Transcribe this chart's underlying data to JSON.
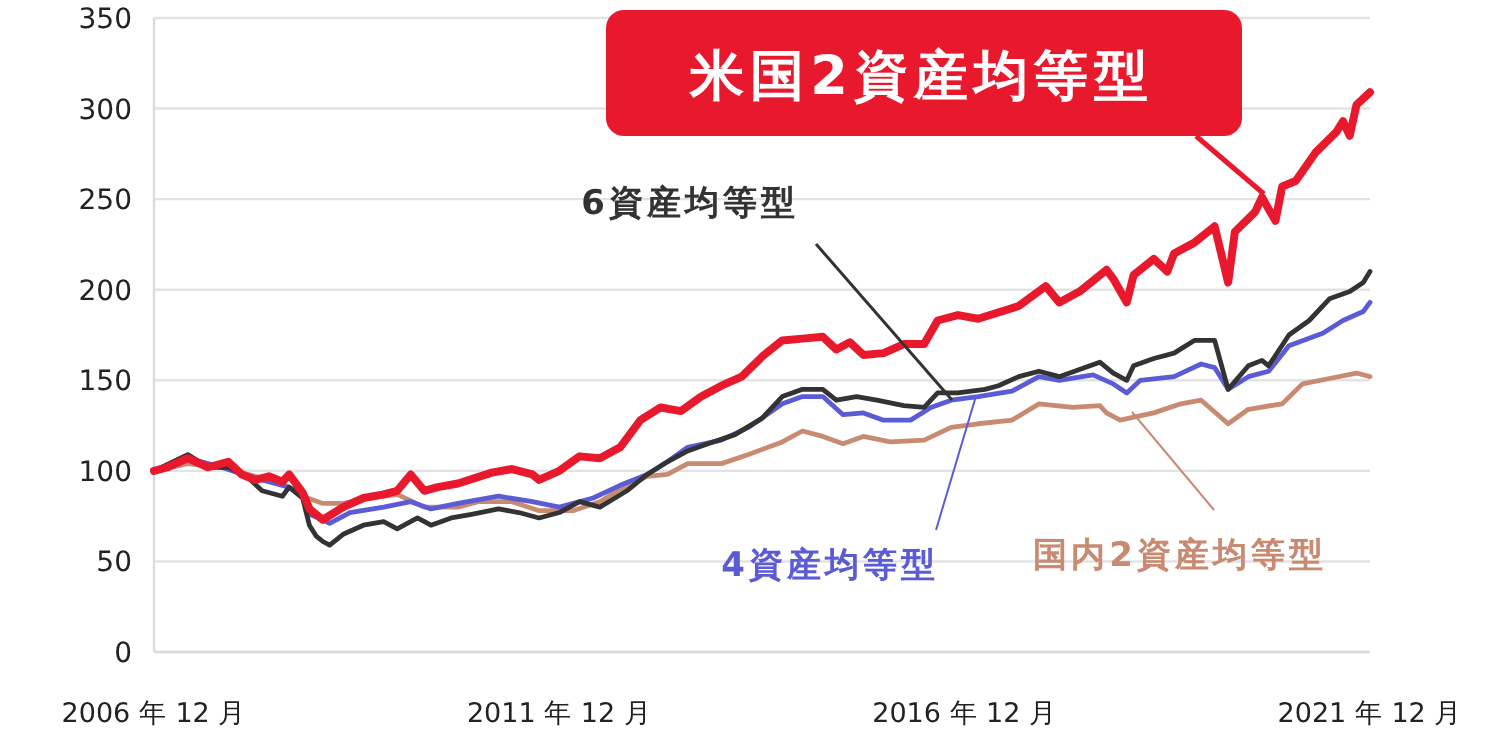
{
  "chart_data": {
    "type": "line",
    "xlim": [
      "2006-12",
      "2021-12"
    ],
    "ylim": [
      0,
      350
    ],
    "yticks": [
      0,
      50,
      100,
      150,
      200,
      250,
      300,
      350
    ],
    "xticks": [
      {
        "value": "2006-12",
        "label": "2006 年 12 月"
      },
      {
        "value": "2011-12",
        "label": "2011 年 12 月"
      },
      {
        "value": "2016-12",
        "label": "2016 年 12 月"
      },
      {
        "value": "2021-12",
        "label": "2021 年 12 月"
      }
    ],
    "grid": "y",
    "legend": false,
    "marker": "none",
    "line_style": "solid",
    "series": [
      {
        "name": "米国2資産均等型",
        "color": "#e8192c",
        "x": [
          "2006-12",
          "2007-02",
          "2007-05",
          "2007-08",
          "2007-11",
          "2008-01",
          "2008-03",
          "2008-05",
          "2008-07",
          "2008-08",
          "2008-10",
          "2008-11",
          "2008-12",
          "2009-01",
          "2009-04",
          "2009-07",
          "2009-10",
          "2009-12",
          "2010-02",
          "2010-04",
          "2010-06",
          "2010-09",
          "2011-02",
          "2011-05",
          "2011-08",
          "2011-09",
          "2011-12",
          "2012-03",
          "2012-06",
          "2012-09",
          "2012-12",
          "2013-03",
          "2013-06",
          "2013-09",
          "2013-12",
          "2014-03",
          "2014-06",
          "2014-09",
          "2014-12",
          "2015-03",
          "2015-05",
          "2015-07",
          "2015-09",
          "2015-12",
          "2016-03",
          "2016-06",
          "2016-08",
          "2016-11",
          "2017-02",
          "2017-08",
          "2017-12",
          "2018-02",
          "2018-05",
          "2018-09",
          "2018-10",
          "2018-12",
          "2019-01",
          "2019-04",
          "2019-06",
          "2019-07",
          "2019-10",
          "2020-01",
          "2020-03",
          "2020-04",
          "2020-07",
          "2020-08",
          "2020-10",
          "2020-11",
          "2021-01",
          "2021-04",
          "2021-07",
          "2021-08",
          "2021-09",
          "2021-10",
          "2021-12"
        ],
        "values": [
          100,
          102,
          107,
          102,
          105,
          98,
          95,
          97,
          94,
          98,
          88,
          79,
          76,
          73,
          80,
          85,
          87,
          89,
          98,
          89,
          91,
          93,
          99,
          101,
          98,
          95,
          100,
          108,
          107,
          113,
          128,
          135,
          133,
          141,
          147,
          152,
          163,
          172,
          173,
          174,
          167,
          171,
          164,
          165,
          170,
          170,
          183,
          186,
          184,
          191,
          202,
          193,
          199,
          211,
          206,
          193,
          208,
          217,
          210,
          220,
          226,
          235,
          204,
          232,
          243,
          251,
          238,
          257,
          260,
          276,
          287,
          293,
          285,
          302,
          309
        ]
      },
      {
        "name": "6資産均等型",
        "color": "#333333",
        "x": [
          "2006-12",
          "2007-05",
          "2007-08",
          "2007-11",
          "2008-02",
          "2008-04",
          "2008-07",
          "2008-08",
          "2008-10",
          "2008-11",
          "2008-12",
          "2009-01",
          "2009-02",
          "2009-04",
          "2009-07",
          "2009-10",
          "2009-12",
          "2010-03",
          "2010-05",
          "2010-08",
          "2010-11",
          "2011-03",
          "2011-06",
          "2011-09",
          "2011-12",
          "2012-03",
          "2012-06",
          "2012-10",
          "2013-01",
          "2013-04",
          "2013-07",
          "2013-10",
          "2014-02",
          "2014-06",
          "2014-09",
          "2014-12",
          "2015-03",
          "2015-05",
          "2015-08",
          "2015-11",
          "2016-03",
          "2016-06",
          "2016-08",
          "2016-11",
          "2017-03",
          "2017-05",
          "2017-08",
          "2017-11",
          "2018-02",
          "2018-05",
          "2018-08",
          "2018-10",
          "2018-12",
          "2019-01",
          "2019-04",
          "2019-07",
          "2019-10",
          "2020-01",
          "2020-03",
          "2020-06",
          "2020-08",
          "2020-09",
          "2020-12",
          "2021-03",
          "2021-06",
          "2021-09",
          "2021-11",
          "2021-12"
        ],
        "values": [
          100,
          109,
          102,
          102,
          96,
          89,
          86,
          91,
          85,
          70,
          64,
          61,
          59,
          65,
          70,
          72,
          68,
          74,
          70,
          74,
          76,
          79,
          77,
          74,
          77,
          83,
          80,
          89,
          98,
          105,
          111,
          115,
          120,
          129,
          141,
          145,
          145,
          139,
          141,
          139,
          136,
          135,
          143,
          143,
          145,
          147,
          152,
          155,
          152,
          156,
          160,
          154,
          150,
          158,
          162,
          165,
          172,
          172,
          145,
          158,
          161,
          158,
          175,
          183,
          195,
          199,
          204,
          210
        ]
      },
      {
        "name": "4資産均等型",
        "color": "#5b5bd6",
        "x": [
          "2006-12",
          "2007-05",
          "2007-10",
          "2008-02",
          "2008-07",
          "2008-10",
          "2008-11",
          "2009-01",
          "2009-02",
          "2009-05",
          "2009-10",
          "2010-02",
          "2010-05",
          "2010-09",
          "2011-03",
          "2011-08",
          "2011-12",
          "2012-05",
          "2012-09",
          "2013-01",
          "2013-04",
          "2013-07",
          "2013-12",
          "2014-04",
          "2014-09",
          "2014-12",
          "2015-03",
          "2015-06",
          "2015-09",
          "2015-12",
          "2016-04",
          "2016-07",
          "2016-10",
          "2017-02",
          "2017-07",
          "2017-11",
          "2018-02",
          "2018-07",
          "2018-10",
          "2018-12",
          "2019-02",
          "2019-07",
          "2019-11",
          "2020-01",
          "2020-03",
          "2020-06",
          "2020-09",
          "2020-12",
          "2021-05",
          "2021-08",
          "2021-11",
          "2021-12"
        ],
        "values": [
          100,
          107,
          102,
          97,
          92,
          88,
          76,
          73,
          71,
          77,
          80,
          83,
          79,
          82,
          86,
          83,
          80,
          85,
          92,
          98,
          105,
          113,
          117,
          124,
          137,
          141,
          141,
          131,
          132,
          128,
          128,
          135,
          139,
          141,
          144,
          152,
          150,
          153,
          148,
          143,
          150,
          152,
          159,
          157,
          145,
          152,
          155,
          169,
          176,
          183,
          188,
          193
        ]
      },
      {
        "name": "国内2資産均等型",
        "color": "#c98a72",
        "x": [
          "2006-12",
          "2007-05",
          "2007-10",
          "2008-02",
          "2008-07",
          "2008-10",
          "2009-01",
          "2009-04",
          "2009-08",
          "2009-12",
          "2010-04",
          "2010-09",
          "2010-12",
          "2011-05",
          "2011-09",
          "2012-02",
          "2012-06",
          "2012-09",
          "2013-01",
          "2013-04",
          "2013-07",
          "2013-12",
          "2014-04",
          "2014-09",
          "2014-12",
          "2015-03",
          "2015-06",
          "2015-09",
          "2016-01",
          "2016-06",
          "2016-10",
          "2017-02",
          "2017-07",
          "2017-11",
          "2018-04",
          "2018-08",
          "2018-09",
          "2018-11",
          "2019-04",
          "2019-08",
          "2019-11",
          "2020-03",
          "2020-06",
          "2020-11",
          "2021-02",
          "2021-06",
          "2021-10",
          "2021-12"
        ],
        "values": [
          100,
          104,
          102,
          98,
          93,
          86,
          82,
          82,
          85,
          87,
          80,
          80,
          83,
          83,
          78,
          78,
          83,
          90,
          97,
          98,
          104,
          104,
          109,
          116,
          122,
          119,
          115,
          119,
          116,
          117,
          124,
          126,
          128,
          137,
          135,
          136,
          132,
          128,
          132,
          137,
          139,
          126,
          134,
          137,
          148,
          151,
          154,
          152
        ]
      }
    ]
  }
}
